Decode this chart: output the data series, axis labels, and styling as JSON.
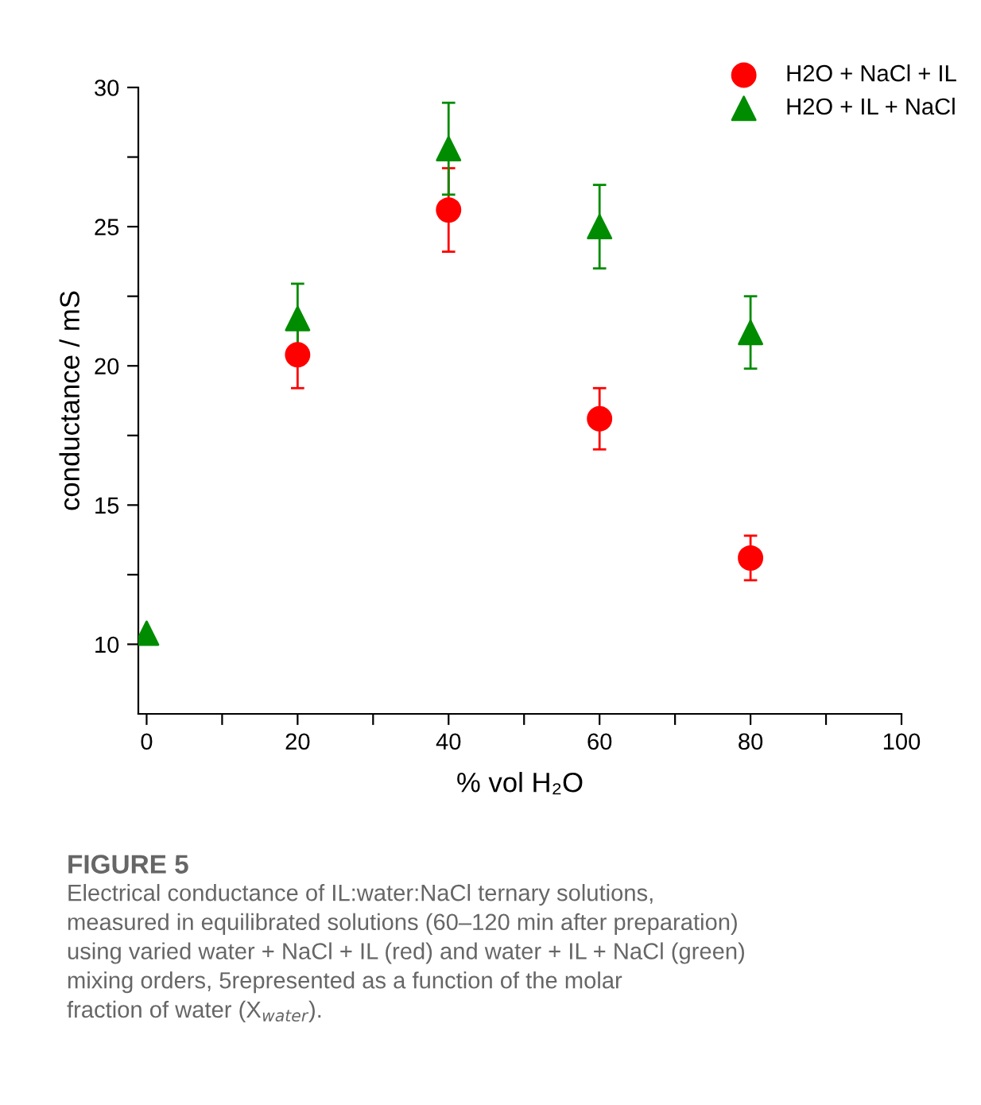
{
  "chart_data": {
    "type": "scatter",
    "xlabel": "% vol H₂O",
    "ylabel": "conductance / mS",
    "xlim": [
      -1.1,
      100
    ],
    "ylim": [
      7.5,
      30
    ],
    "xticks": [
      0,
      {
        "value": 10,
        "label": null
      },
      20,
      {
        "value": 30,
        "label": null
      },
      40,
      {
        "value": 50,
        "label": null
      },
      60,
      {
        "value": 70,
        "label": null
      },
      80,
      {
        "value": 90,
        "label": null
      },
      100
    ],
    "yticks": [
      10,
      {
        "value": 12.5,
        "label": null
      },
      15,
      {
        "value": 17.5,
        "label": null
      },
      20,
      {
        "value": 22.5,
        "label": null
      },
      25,
      {
        "value": 27.5,
        "label": null
      },
      30
    ],
    "grid": false,
    "legend": "top right",
    "series": [
      {
        "name": "H2O + NaCl + IL",
        "color": "#ff0000",
        "marker": "circle",
        "x": [
          20,
          40,
          60,
          80
        ],
        "values": [
          20.4,
          25.6,
          18.1,
          13.1
        ],
        "errors": [
          1.2,
          1.5,
          1.1,
          0.8
        ]
      },
      {
        "name": "H2O + IL + NaCl",
        "color": "#008c00",
        "marker": "triangle",
        "x": [
          0,
          20,
          40,
          60,
          80
        ],
        "values": [
          10.4,
          21.7,
          27.8,
          25.0,
          21.2
        ],
        "errors": [
          null,
          1.25,
          1.65,
          1.5,
          1.3
        ]
      }
    ],
    "annotations": [
      "FIGURE 5",
      "Electrical conductance of IL:water:NaCl ternary solutions,\nmeasured in equilibrated solutions (60–120 min after preparation)\nusing varied water + NaCl + IL (red) and water + IL + NaCl (green)\nmixing orders, 5represented as a function of the molar\nfraction of water (X$_{water}$)."
    ]
  }
}
